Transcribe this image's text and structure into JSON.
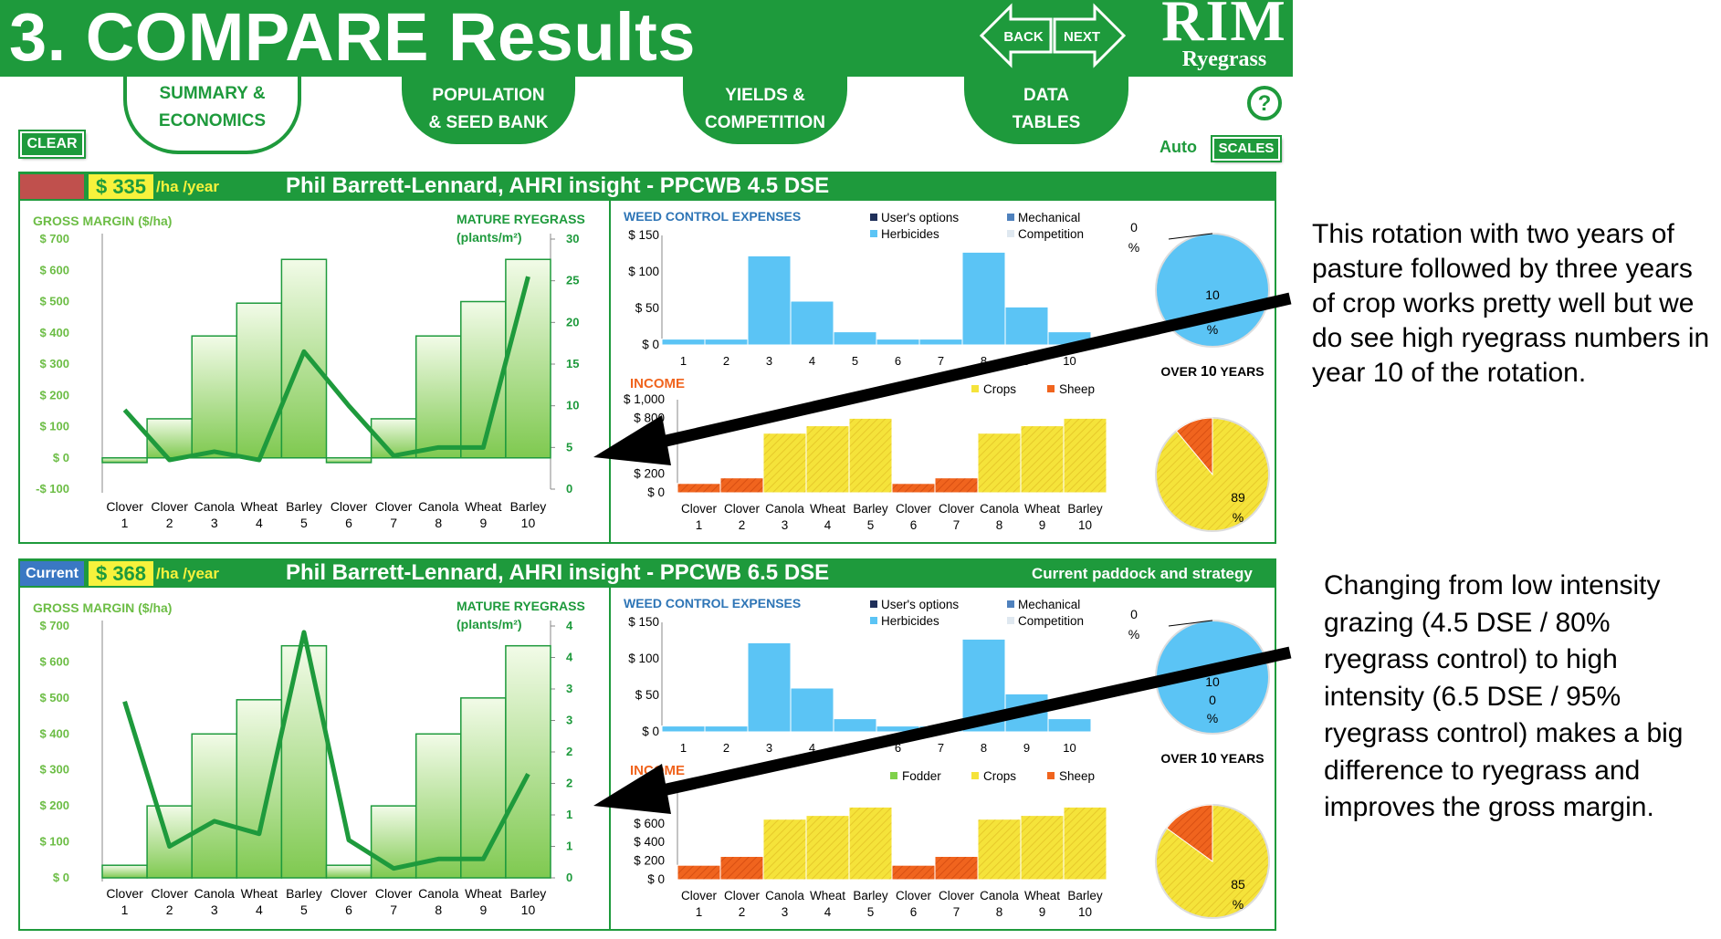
{
  "header": {
    "title": "3. COMPARE Results",
    "back_label": "BACK",
    "next_label": "NEXT",
    "logo_top": "RIM",
    "logo_bottom": "Ryegrass"
  },
  "tabs": [
    {
      "line1": "SUMMARY &",
      "line2": "ECONOMICS",
      "active": true
    },
    {
      "line1": "POPULATION",
      "line2": "& SEED BANK",
      "active": false
    },
    {
      "line1": "YIELDS &",
      "line2": "COMPETITION",
      "active": false
    },
    {
      "line1": "DATA",
      "line2": "TABLES",
      "active": false
    }
  ],
  "controls": {
    "clear_label": "CLEAR",
    "help_label": "?",
    "auto_label": "Auto",
    "scales_label": "SCALES"
  },
  "labels": {
    "gross_margin": "GROSS MARGIN ($/ha)",
    "mature_ryegrass_1": "MATURE RYEGRASS",
    "mature_ryegrass_2": "(plants/m²)",
    "weed_control": "WEED CONTROL EXPENSES",
    "income": "INCOME",
    "over_years_pre": "OVER ",
    "over_years_num": "10",
    "over_years_post": " YEARS",
    "per_ha_year": "/ha /year"
  },
  "weed_legend": [
    "User's options",
    "Mechanical",
    "Herbicides",
    "Competition"
  ],
  "income_legend": [
    "Fodder",
    "Crops",
    "Sheep"
  ],
  "colors": {
    "green": "#1e9a3c",
    "herbicide_blue": "#5bc4f5",
    "user_navy": "#1f2f5a",
    "mechanical": "#4f81bd",
    "competition": "#dfe8f0",
    "crops_yellow": "#f5e33a",
    "sheep_orange": "#f0641e",
    "swatch_red": "#c0504d",
    "current_blue": "#3a78c3"
  },
  "crops": [
    "Clover",
    "Clover",
    "Canola",
    "Wheat",
    "Barley",
    "Clover",
    "Clover",
    "Canola",
    "Wheat",
    "Barley"
  ],
  "years": [
    "1",
    "2",
    "3",
    "4",
    "5",
    "6",
    "7",
    "8",
    "9",
    "10"
  ],
  "panels": [
    {
      "tag": "",
      "gm_value": "$ 335",
      "title": "Phil Barrett-Lennard, AHRI insight - PPCWB 4.5 DSE",
      "right_label": "",
      "income_legend_visible": [
        "",
        "Crops",
        "Sheep"
      ],
      "gm_axis": [
        "$ 700",
        "$ 600",
        "$ 500",
        "$ 400",
        "$ 300",
        "$ 200",
        "$ 100",
        "$ 0",
        "-$ 100"
      ],
      "rye_axis": [
        "30",
        "25",
        "20",
        "15",
        "10",
        "5",
        "0"
      ],
      "weed_axis": [
        "$ 150",
        "$ 100",
        "$ 50",
        "$ 0"
      ],
      "income_axis": [
        "$ 1,000",
        "$ 800",
        "",
        "",
        "$ 200",
        "$ 0"
      ],
      "weed_pie_top": "0",
      "weed_pie_pct1": "%",
      "weed_pie_mid": "10",
      "weed_pie_pct2": "%",
      "income_pie_value": "89",
      "income_pie_pct": "%",
      "chart_data": {
        "gross_margin": {
          "type": "bar",
          "ylim": [
            -100,
            700
          ],
          "values": [
            -15,
            125,
            390,
            495,
            635,
            -15,
            125,
            390,
            500,
            635
          ]
        },
        "mature_ryegrass": {
          "type": "line",
          "ylim": [
            0,
            30
          ],
          "values": [
            9.5,
            3.5,
            4.5,
            3.5,
            16.5,
            10,
            4,
            5,
            5,
            25.5
          ]
        },
        "weed_control": {
          "type": "bar",
          "ylim": [
            0,
            150
          ],
          "herbicides": [
            8,
            8,
            122,
            60,
            18,
            8,
            8,
            127,
            52,
            18
          ]
        },
        "income": {
          "type": "bar",
          "ylim": [
            0,
            1000
          ],
          "sheep": [
            100,
            160,
            0,
            0,
            0,
            100,
            160,
            0,
            0,
            0
          ],
          "crops": [
            0,
            0,
            640,
            720,
            800,
            0,
            0,
            640,
            720,
            800
          ]
        },
        "weed_pie": {
          "type": "pie",
          "values": [
            100
          ]
        },
        "income_pie": {
          "type": "pie",
          "values": [
            89,
            11
          ]
        }
      }
    },
    {
      "tag": "Current",
      "gm_value": "$ 368",
      "title": "Phil Barrett-Lennard, AHRI insight - PPCWB 6.5 DSE",
      "right_label": "Current paddock and strategy",
      "income_legend_visible": [
        "Fodder",
        "Crops",
        "Sheep"
      ],
      "gm_axis": [
        "$ 700",
        "$ 600",
        "$ 500",
        "$ 400",
        "$ 300",
        "$ 200",
        "$ 100",
        "$ 0"
      ],
      "rye_axis": [
        "4",
        "4",
        "3",
        "3",
        "2",
        "2",
        "1",
        "1",
        "0"
      ],
      "weed_axis": [
        "$ 150",
        "$ 100",
        "$ 50",
        "$ 0"
      ],
      "income_axis": [
        "",
        "",
        "$ 600",
        "$ 400",
        "$ 200",
        "$ 0"
      ],
      "weed_pie_top": "0",
      "weed_pie_pct1": "%",
      "weed_pie_mid": "10",
      "weed_pie_mid2": "0",
      "weed_pie_pct2": "%",
      "income_pie_value": "85",
      "income_pie_pct": "%",
      "chart_data": {
        "gross_margin": {
          "type": "bar",
          "ylim": [
            0,
            700
          ],
          "values": [
            35,
            200,
            400,
            495,
            645,
            35,
            200,
            400,
            500,
            645
          ]
        },
        "mature_ryegrass": {
          "type": "line",
          "ylim": [
            0,
            4
          ],
          "values": [
            2.8,
            0.5,
            0.9,
            0.7,
            3.9,
            0.6,
            0.15,
            0.3,
            0.3,
            1.65
          ]
        },
        "weed_control": {
          "type": "bar",
          "ylim": [
            0,
            150
          ],
          "herbicides": [
            8,
            8,
            122,
            60,
            18,
            8,
            8,
            127,
            52,
            18
          ]
        },
        "income": {
          "type": "bar",
          "ylim": [
            0,
            1000
          ],
          "sheep": [
            155,
            250,
            0,
            0,
            0,
            155,
            250,
            0,
            0,
            0
          ],
          "crops": [
            0,
            0,
            650,
            690,
            780,
            0,
            0,
            650,
            690,
            780
          ]
        },
        "weed_pie": {
          "type": "pie",
          "values": [
            100
          ]
        },
        "income_pie": {
          "type": "pie",
          "values": [
            85,
            15
          ]
        }
      }
    }
  ],
  "annotations": {
    "top": "This rotation with two years of pasture followed by three years of crop works pretty well but we do see high ryegrass numbers in year 10 of the rotation.",
    "bottom": "Changing from low intensity grazing (4.5 DSE / 80% ryegrass control) to high intensity (6.5 DSE / 95% ryegrass control) makes a big difference to ryegrass and improves the gross margin."
  }
}
